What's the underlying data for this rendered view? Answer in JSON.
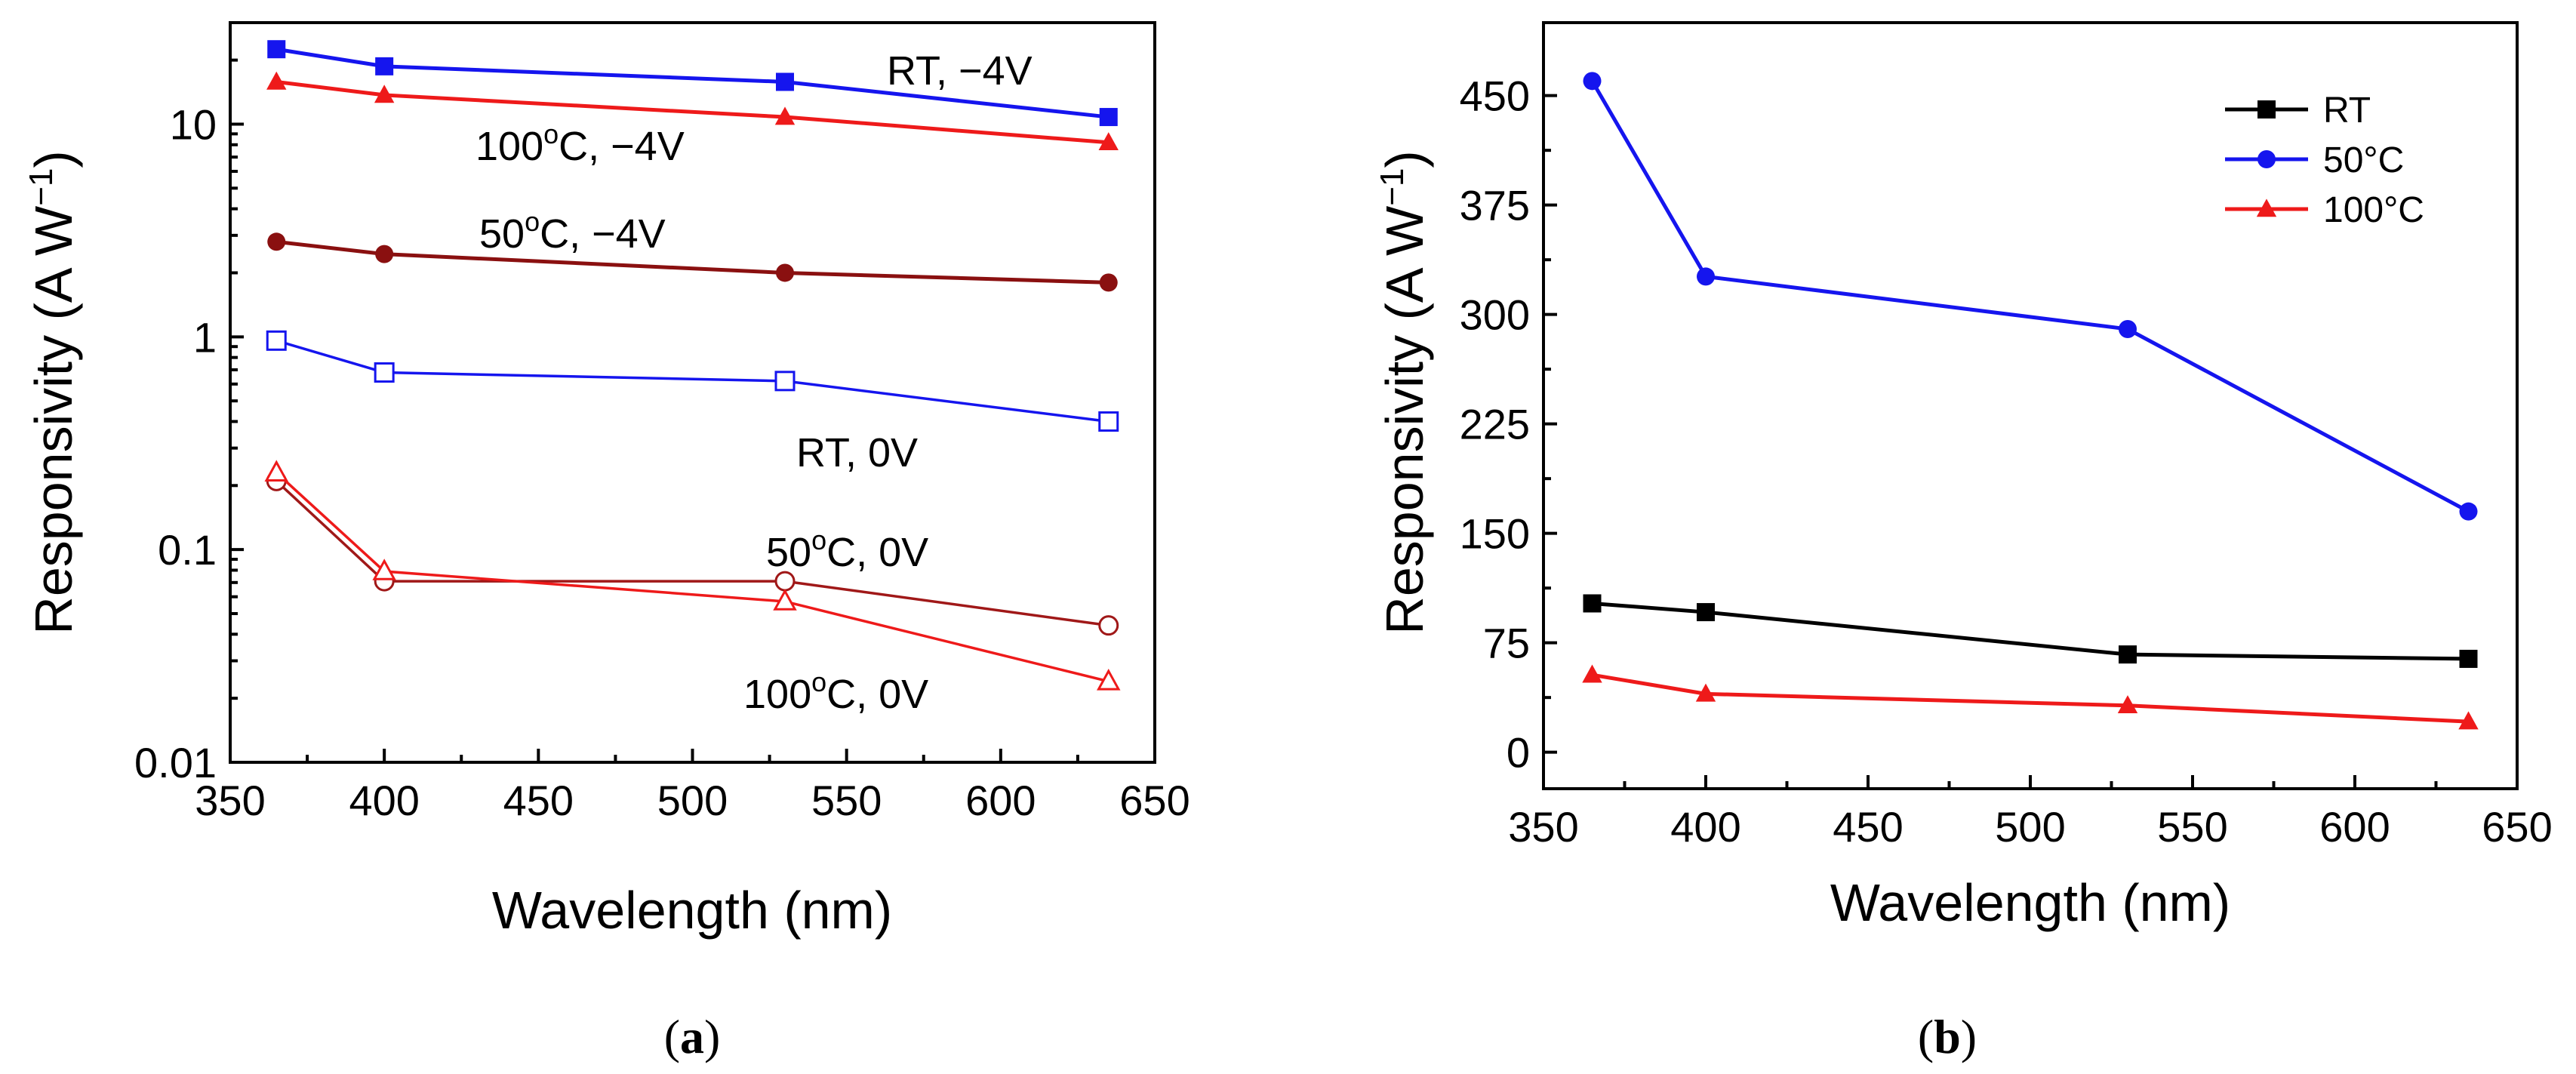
{
  "chart_data": [
    {
      "id": "a",
      "type": "line",
      "caption": "(a)",
      "caption_letter": "a",
      "xlabel": "Wavelength (nm)",
      "ylabel": "Responsivity (A W",
      "ylabel_sup": "−1",
      "ylabel_close": ")",
      "xlim": [
        350,
        650
      ],
      "ylim": [
        0.01,
        30
      ],
      "yscale": "log",
      "xticks": [
        350,
        400,
        450,
        500,
        550,
        600,
        650
      ],
      "xtick_labels": [
        "350",
        "400",
        "450",
        "500",
        "550",
        "600",
        "650"
      ],
      "yticks": [
        0.01,
        0.1,
        1,
        10
      ],
      "ytick_labels": [
        "0.01",
        "0.1",
        "1",
        "10"
      ],
      "series": [
        {
          "name": "RT, −4V",
          "x": [
            365,
            400,
            530,
            635
          ],
          "values": [
            22.5,
            18.7,
            15.8,
            10.8
          ],
          "color": "#1515ee",
          "marker": "square",
          "filled": true
        },
        {
          "name": "100°C, −4V",
          "x": [
            365,
            400,
            530,
            635
          ],
          "values": [
            15.8,
            13.7,
            10.8,
            8.2
          ],
          "color": "#ee1a1a",
          "marker": "triangle",
          "filled": true
        },
        {
          "name": "50°C, −4V",
          "x": [
            365,
            400,
            530,
            635
          ],
          "values": [
            2.8,
            2.45,
            2.0,
            1.8
          ],
          "color": "#8a1010",
          "marker": "circle",
          "filled": true
        },
        {
          "name": "RT, 0V",
          "x": [
            365,
            400,
            530,
            635
          ],
          "values": [
            0.96,
            0.68,
            0.62,
            0.4
          ],
          "color": "#1515ee",
          "marker": "square",
          "filled": false
        },
        {
          "name": "50°C, 0V",
          "x": [
            365,
            400,
            530,
            635
          ],
          "values": [
            0.21,
            0.071,
            0.071,
            0.044
          ],
          "color": "#a01818",
          "marker": "circle",
          "filled": false
        },
        {
          "name": "100°C, 0V",
          "x": [
            365,
            400,
            530,
            635
          ],
          "values": [
            0.23,
            0.079,
            0.057,
            0.024
          ],
          "color": "#ee1a1a",
          "marker": "triangle",
          "filled": false
        }
      ],
      "annotations": [
        {
          "text": "RT, −4V",
          "near": "RT, −4V series, right end"
        },
        {
          "text": "100",
          "sup": "o",
          "rest": "C, −4V",
          "near": "100°C, −4V series"
        },
        {
          "text": "50",
          "sup": "o",
          "rest": "C, −4V",
          "near": "50°C, −4V series"
        },
        {
          "text": "RT, 0V",
          "near": "RT, 0V series"
        },
        {
          "text": "50",
          "sup": "o",
          "rest": "C, 0V",
          "near": "50°C, 0V series"
        },
        {
          "text": "100",
          "sup": "o",
          "rest": "C, 0V",
          "near": "100°C, 0V series"
        }
      ]
    },
    {
      "id": "b",
      "type": "line",
      "caption": "(b)",
      "caption_letter": "b",
      "xlabel": "Wavelength (nm)",
      "ylabel": "Responsivity (A W",
      "ylabel_sup": "−1",
      "ylabel_close": ")",
      "xlim": [
        350,
        650
      ],
      "ylim": [
        -25,
        500
      ],
      "xticks": [
        350,
        400,
        450,
        500,
        550,
        600,
        650
      ],
      "xtick_labels": [
        "350",
        "400",
        "450",
        "500",
        "550",
        "600",
        "650"
      ],
      "yticks": [
        0,
        75,
        150,
        225,
        300,
        375,
        450
      ],
      "ytick_labels": [
        "0",
        "75",
        "150",
        "225",
        "300",
        "375",
        "450"
      ],
      "legend_position": "top-right",
      "series": [
        {
          "name": "RT",
          "x": [
            365,
            400,
            530,
            635
          ],
          "values": [
            102,
            96,
            67,
            64
          ],
          "color": "#000000",
          "marker": "square",
          "filled": true
        },
        {
          "name": "50°C",
          "x": [
            365,
            400,
            530,
            635
          ],
          "values": [
            460,
            326,
            290,
            165
          ],
          "color": "#1515ee",
          "marker": "circle",
          "filled": true
        },
        {
          "name": "100°C",
          "x": [
            365,
            400,
            530,
            635
          ],
          "values": [
            53,
            40,
            32,
            21
          ],
          "color": "#ee1a1a",
          "marker": "triangle",
          "filled": true
        }
      ]
    }
  ]
}
